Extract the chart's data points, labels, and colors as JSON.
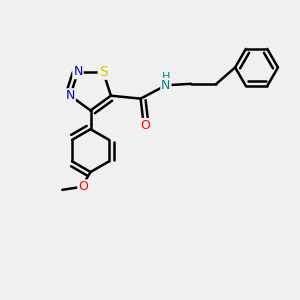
{
  "background_color": "#f0f0f0",
  "bond_color": "#000000",
  "bond_width": 1.8,
  "atom_colors": {
    "N": "#0000dd",
    "S": "#cccc00",
    "O": "#ff0000",
    "NH": "#008080",
    "C": "#000000"
  },
  "font_size": 9,
  "fig_size": [
    3.0,
    3.0
  ],
  "dpi": 100,
  "xlim": [
    0,
    10
  ],
  "ylim": [
    0,
    10
  ]
}
